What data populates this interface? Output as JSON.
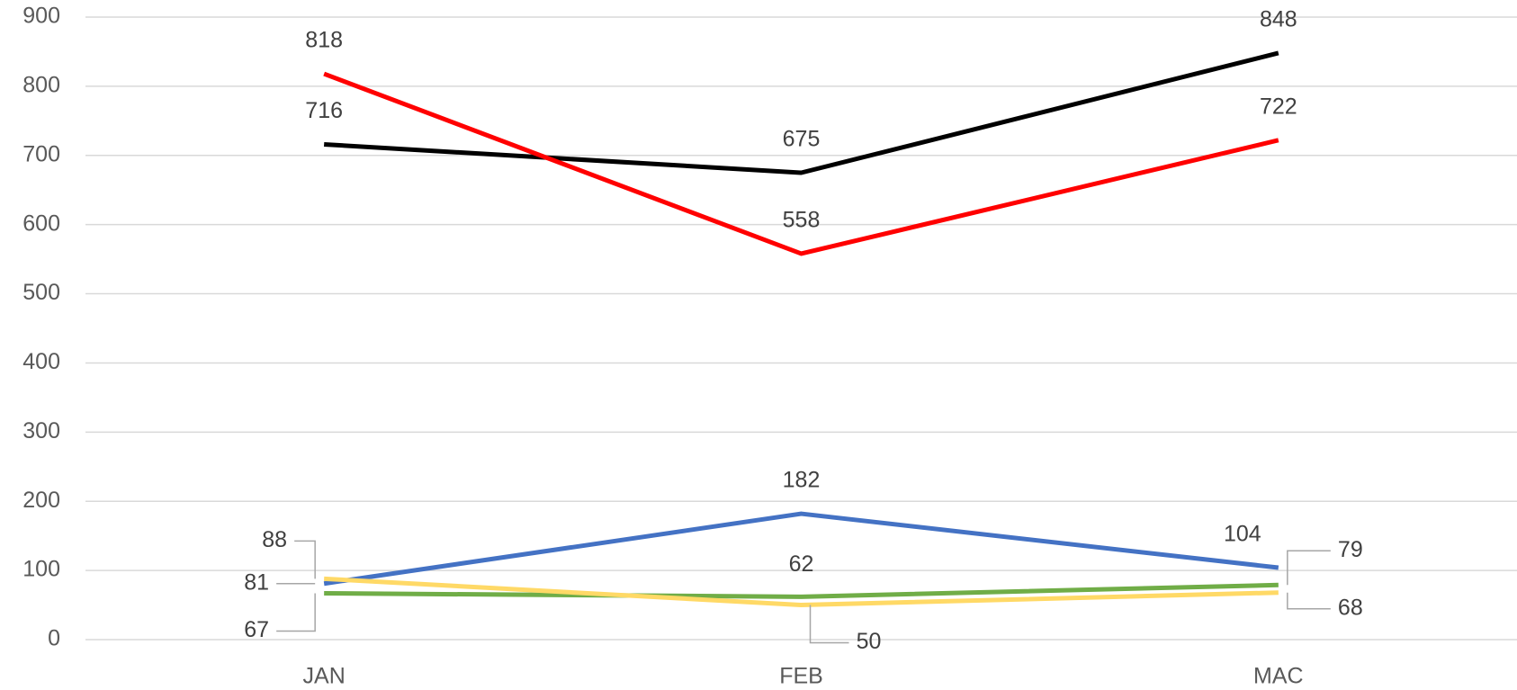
{
  "chart_data": {
    "type": "line",
    "categories": [
      "JAN",
      "FEB",
      "MAC"
    ],
    "series": [
      {
        "color": "#000000",
        "values": [
          716,
          675,
          848
        ]
      },
      {
        "color": "#ff0000",
        "values": [
          818,
          558,
          722
        ]
      },
      {
        "color": "#4472c4",
        "values": [
          81,
          182,
          104
        ]
      },
      {
        "color": "#70ad47",
        "values": [
          67,
          62,
          79
        ]
      },
      {
        "color": "#ffd966",
        "values": [
          88,
          50,
          68
        ]
      }
    ],
    "ylim": [
      0,
      900
    ],
    "yticks": [
      0,
      100,
      200,
      300,
      400,
      500,
      600,
      700,
      800,
      900
    ],
    "grid": true
  }
}
